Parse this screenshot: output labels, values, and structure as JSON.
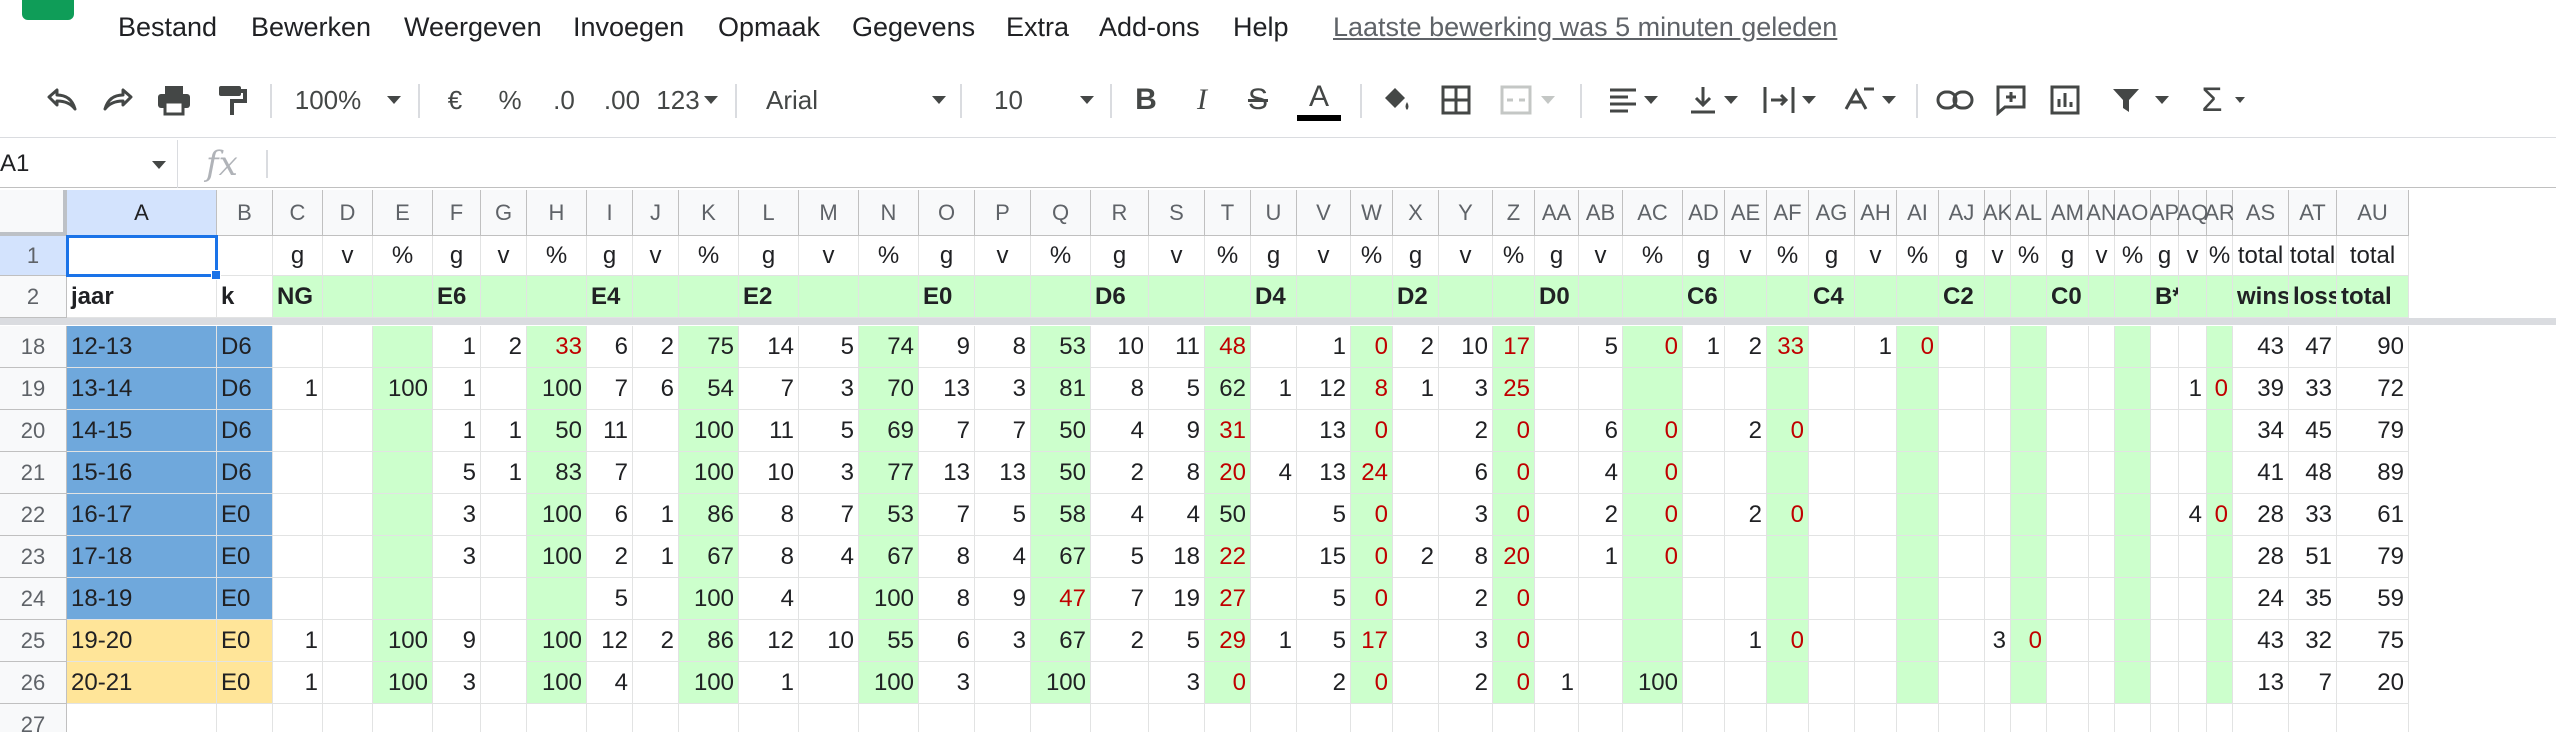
{
  "menu": [
    "Bestand",
    "Bewerken",
    "Weergeven",
    "Invoegen",
    "Opmaak",
    "Gegevens",
    "Extra",
    "Add-ons",
    "Help"
  ],
  "last_edit": "Laatste bewerking was 5 minuten geleden",
  "toolbar": {
    "zoom": "100%",
    "currency": "€",
    "percent": "%",
    "dec_less": ".0",
    "dec_more": ".00",
    "format_more": "123",
    "font": "Arial",
    "font_size": "10",
    "bold": "B",
    "italic": "I",
    "strike": "S",
    "text_color": "A",
    "text_color_value": "#000000",
    "sum": "Σ"
  },
  "namebox": "A1",
  "fx": "fx",
  "colors": {
    "blue_cell": "#6fa8dc",
    "yellow_cell": "#ffe599",
    "green_cell": "#ccffcc",
    "selection": "#1a73e8",
    "red_text": "#c00000"
  },
  "columns": [
    "A",
    "B",
    "C",
    "D",
    "E",
    "F",
    "G",
    "H",
    "I",
    "J",
    "K",
    "L",
    "M",
    "N",
    "O",
    "P",
    "Q",
    "R",
    "S",
    "T",
    "U",
    "V",
    "W",
    "X",
    "Y",
    "Z",
    "AA",
    "AB",
    "AC",
    "AD",
    "AE",
    "AF",
    "AG",
    "AH",
    "AI",
    "AJ",
    "AK",
    "AL",
    "AM",
    "AN",
    "AO",
    "AP",
    "AQ",
    "AR",
    "AS",
    "AT",
    "AU"
  ],
  "rows": [
    {
      "n": "1",
      "cells": [
        "",
        "",
        "g",
        "v",
        "%",
        "g",
        "v",
        "%",
        "g",
        "v",
        "%",
        "g",
        "v",
        "%",
        "g",
        "v",
        "%",
        "g",
        "v",
        "%",
        "g",
        "v",
        "%",
        "g",
        "v",
        "%",
        "g",
        "v",
        "%",
        "g",
        "v",
        "%",
        "g",
        "v",
        "%",
        "g",
        "v",
        "%",
        "g",
        "v",
        "%",
        "g",
        "v",
        "%",
        "total",
        "total",
        "total"
      ]
    },
    {
      "n": "2",
      "cells": [
        "jaar",
        "k",
        "NG",
        "",
        "",
        "E6",
        "",
        "",
        "E4",
        "",
        "",
        "E2",
        "",
        "",
        "E0",
        "",
        "",
        "D6",
        "",
        "",
        "D4",
        "",
        "",
        "D2",
        "",
        "",
        "D0",
        "",
        "",
        "C6",
        "",
        "",
        "C4",
        "",
        "",
        "C2",
        "",
        "",
        "C0",
        "",
        "",
        "B*",
        "",
        "",
        "wins",
        "loss",
        "total"
      ]
    },
    {
      "n": "18",
      "cells": [
        "12-13",
        "D6",
        "",
        "",
        "",
        "1",
        "2",
        "33",
        "6",
        "2",
        "75",
        "14",
        "5",
        "74",
        "9",
        "8",
        "53",
        "10",
        "11",
        "48",
        "",
        "1",
        "0",
        "2",
        "10",
        "17",
        "",
        "5",
        "0",
        "1",
        "2",
        "33",
        "",
        "1",
        "0",
        "",
        "",
        "",
        "",
        "",
        "",
        "",
        "",
        "",
        "43",
        "47",
        "90"
      ]
    },
    {
      "n": "19",
      "cells": [
        "13-14",
        "D6",
        "1",
        "",
        "100",
        "1",
        "",
        "100",
        "7",
        "6",
        "54",
        "7",
        "3",
        "70",
        "13",
        "3",
        "81",
        "8",
        "5",
        "62",
        "1",
        "12",
        "8",
        "1",
        "3",
        "25",
        "",
        "",
        "",
        "",
        "",
        "",
        "",
        "",
        "",
        "",
        "",
        "",
        "",
        "",
        "",
        "",
        "1",
        "0",
        "39",
        "33",
        "72"
      ]
    },
    {
      "n": "20",
      "cells": [
        "14-15",
        "D6",
        "",
        "",
        "",
        "1",
        "1",
        "50",
        "11",
        "",
        "100",
        "11",
        "5",
        "69",
        "7",
        "7",
        "50",
        "4",
        "9",
        "31",
        "",
        "13",
        "0",
        "",
        "2",
        "0",
        "",
        "6",
        "0",
        "",
        "2",
        "0",
        "",
        "",
        "",
        "",
        "",
        "",
        "",
        "",
        "",
        "",
        "",
        "",
        "34",
        "45",
        "79"
      ]
    },
    {
      "n": "21",
      "cells": [
        "15-16",
        "D6",
        "",
        "",
        "",
        "5",
        "1",
        "83",
        "7",
        "",
        "100",
        "10",
        "3",
        "77",
        "13",
        "13",
        "50",
        "2",
        "8",
        "20",
        "4",
        "13",
        "24",
        "",
        "6",
        "0",
        "",
        "4",
        "0",
        "",
        "",
        "",
        "",
        "",
        "",
        "",
        "",
        "",
        "",
        "",
        "",
        "",
        "",
        "",
        "41",
        "48",
        "89"
      ]
    },
    {
      "n": "22",
      "cells": [
        "16-17",
        "E0",
        "",
        "",
        "",
        "3",
        "",
        "100",
        "6",
        "1",
        "86",
        "8",
        "7",
        "53",
        "7",
        "5",
        "58",
        "4",
        "4",
        "50",
        "",
        "5",
        "0",
        "",
        "3",
        "0",
        "",
        "2",
        "0",
        "",
        "2",
        "0",
        "",
        "",
        "",
        "",
        "",
        "",
        "",
        "",
        "",
        "",
        "4",
        "0",
        "28",
        "33",
        "61"
      ]
    },
    {
      "n": "23",
      "cells": [
        "17-18",
        "E0",
        "",
        "",
        "",
        "3",
        "",
        "100",
        "2",
        "1",
        "67",
        "8",
        "4",
        "67",
        "8",
        "4",
        "67",
        "5",
        "18",
        "22",
        "",
        "15",
        "0",
        "2",
        "8",
        "20",
        "",
        "1",
        "0",
        "",
        "",
        "",
        "",
        "",
        "",
        "",
        "",
        "",
        "",
        "",
        "",
        "",
        "",
        "",
        "28",
        "51",
        "79"
      ]
    },
    {
      "n": "24",
      "cells": [
        "18-19",
        "E0",
        "",
        "",
        "",
        "",
        "",
        "",
        "5",
        "",
        "100",
        "4",
        "",
        "100",
        "8",
        "9",
        "47",
        "7",
        "19",
        "27",
        "",
        "5",
        "0",
        "",
        "2",
        "0",
        "",
        "",
        "",
        "",
        "",
        "",
        "",
        "",
        "",
        "",
        "",
        "",
        "",
        "",
        "",
        "",
        "",
        "",
        "24",
        "35",
        "59"
      ]
    },
    {
      "n": "25",
      "cells": [
        "19-20",
        "E0",
        "1",
        "",
        "100",
        "9",
        "",
        "100",
        "12",
        "2",
        "86",
        "12",
        "10",
        "55",
        "6",
        "3",
        "67",
        "2",
        "5",
        "29",
        "1",
        "5",
        "17",
        "",
        "3",
        "0",
        "",
        "",
        "",
        "",
        "1",
        "0",
        "",
        "",
        "",
        "",
        "3",
        "0",
        "",
        "",
        "",
        "",
        "",
        "",
        "43",
        "32",
        "75"
      ]
    },
    {
      "n": "26",
      "cells": [
        "20-21",
        "E0",
        "1",
        "",
        "100",
        "3",
        "",
        "100",
        "4",
        "",
        "100",
        "1",
        "",
        "100",
        "3",
        "",
        "100",
        "",
        "3",
        "0",
        "",
        "2",
        "0",
        "",
        "2",
        "0",
        "1",
        "",
        "100",
        "",
        "",
        "",
        "",
        "",
        "",
        "",
        "",
        "",
        "",
        "",
        "",
        "",
        "",
        "",
        "13",
        "7",
        "20"
      ]
    },
    {
      "n": "27",
      "cells": [
        "",
        "",
        "",
        "",
        "",
        "",
        "",
        "",
        "",
        "",
        "",
        "",
        "",
        "",
        "",
        "",
        "",
        "",
        "",
        "",
        "",
        "",
        "",
        "",
        "",
        "",
        "",
        "",
        "",
        "",
        "",
        "",
        "",
        "",
        "",
        "",
        "",
        "",
        "",
        "",
        "",
        "",
        "",
        "",
        "",
        "",
        ""
      ]
    }
  ]
}
